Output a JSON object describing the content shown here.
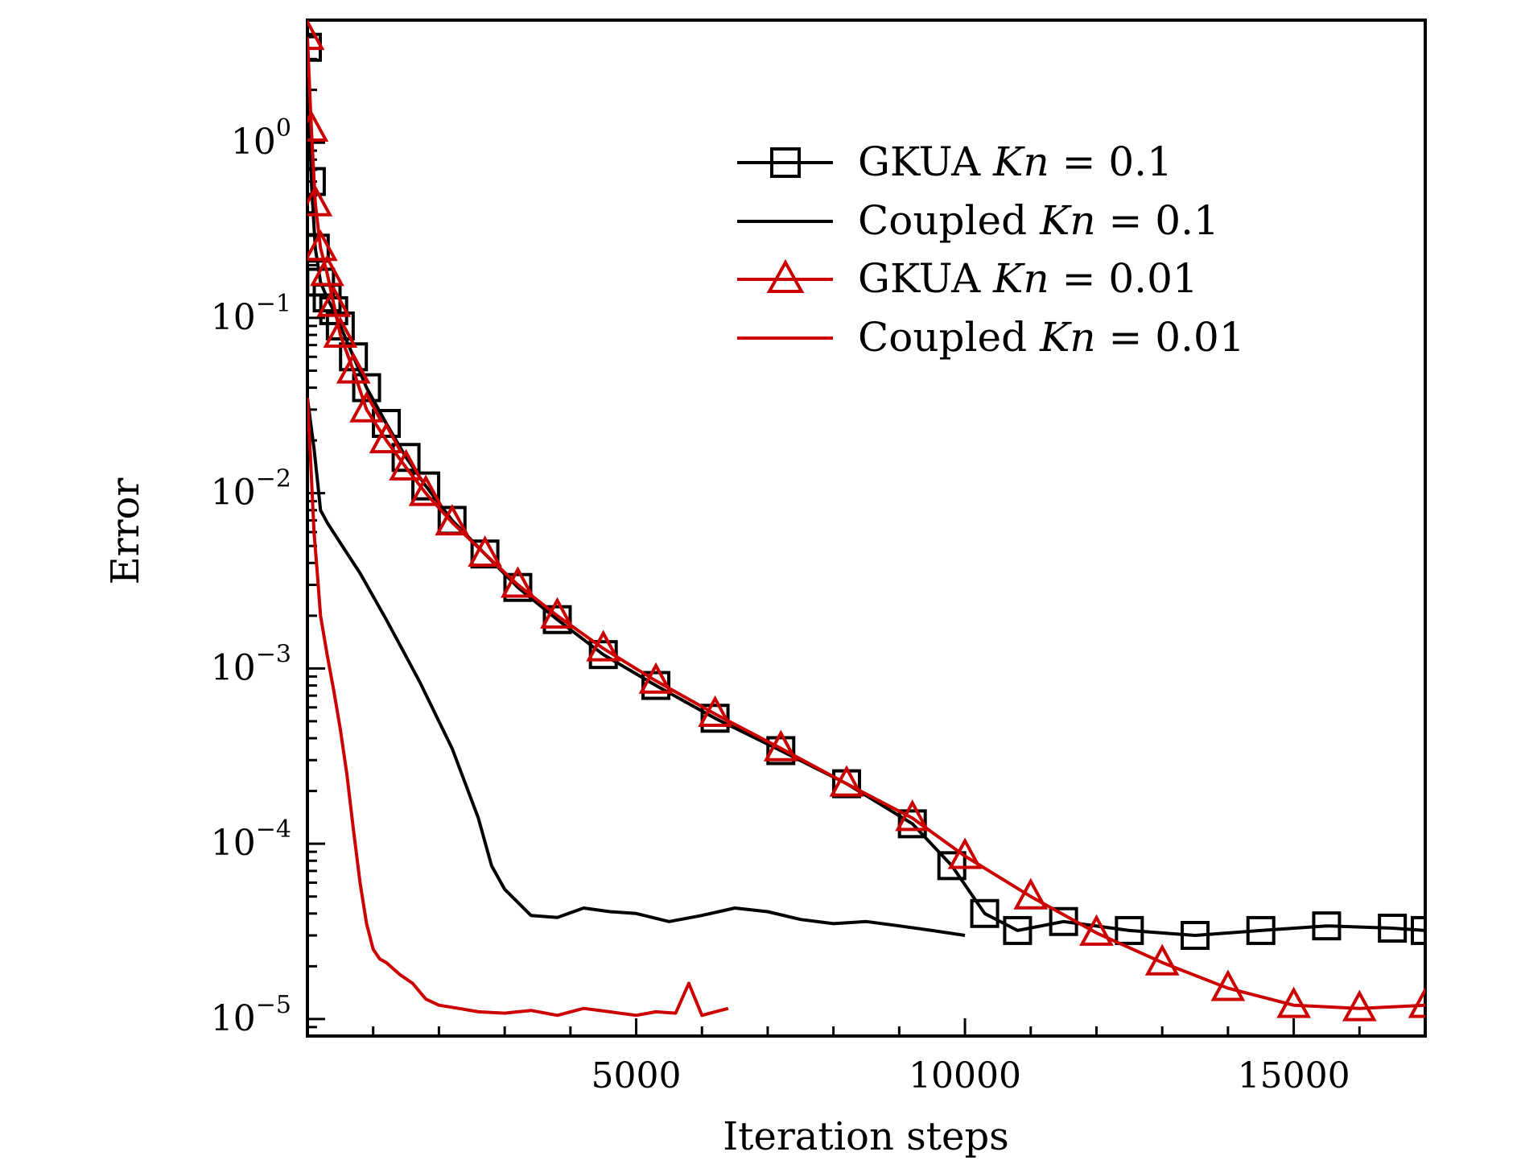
{
  "chart_data": {
    "type": "line",
    "title": "",
    "xlabel": "Iteration steps",
    "ylabel": "Error",
    "xlim": [
      0,
      17000
    ],
    "ylim": [
      8e-06,
      5
    ],
    "yscale": "log",
    "xticks": [
      5000,
      10000,
      15000
    ],
    "xtick_labels": [
      "5000",
      "10000",
      "15000"
    ],
    "yticks": [
      1,
      0.1,
      0.01,
      0.001,
      0.0001,
      1e-05
    ],
    "ytick_labels": [
      {
        "base": "10",
        "exp": "0"
      },
      {
        "base": "10",
        "exp": "−1"
      },
      {
        "base": "10",
        "exp": "−2"
      },
      {
        "base": "10",
        "exp": "−3"
      },
      {
        "base": "10",
        "exp": "−4"
      },
      {
        "base": "10",
        "exp": "−5"
      }
    ],
    "legend_position": "upper-right",
    "series": [
      {
        "name": "GKUA Kn = 0.1",
        "label": {
          "prefix": "GKUA ",
          "math": "Kn",
          "suffix": " = 0.1"
        },
        "color": "#000000",
        "marker": "square",
        "x": [
          0,
          60,
          120,
          200,
          300,
          400,
          500,
          700,
          900,
          1200,
          1500,
          1800,
          2200,
          2700,
          3200,
          3800,
          4500,
          5300,
          6200,
          7200,
          8200,
          9200,
          9800,
          10300,
          10800,
          11500,
          12500,
          13500,
          14500,
          15500,
          16500,
          17000
        ],
        "y": [
          3.5,
          0.6,
          0.25,
          0.16,
          0.13,
          0.11,
          0.09,
          0.06,
          0.04,
          0.025,
          0.016,
          0.011,
          0.007,
          0.0045,
          0.0029,
          0.0019,
          0.0012,
          0.0008,
          0.00052,
          0.00034,
          0.00022,
          0.00013,
          7.5e-05,
          4e-05,
          3.2e-05,
          3.6e-05,
          3.2e-05,
          3e-05,
          3.2e-05,
          3.4e-05,
          3.3e-05,
          3.2e-05
        ]
      },
      {
        "name": "Coupled Kn = 0.1",
        "label": {
          "prefix": "Coupled ",
          "math": "Kn",
          "suffix": " = 0.1"
        },
        "color": "#000000",
        "marker": "none",
        "x": [
          0,
          50,
          100,
          150,
          200,
          300,
          500,
          800,
          1200,
          1700,
          2200,
          2600,
          2800,
          3000,
          3400,
          3800,
          4200,
          4600,
          5000,
          5500,
          6000,
          6500,
          7000,
          7500,
          8000,
          8500,
          9000,
          9500,
          10000
        ],
        "y": [
          0.035,
          0.025,
          0.018,
          0.012,
          0.008,
          0.0068,
          0.0052,
          0.0035,
          0.0019,
          0.00085,
          0.00035,
          0.00014,
          7.5e-05,
          5.5e-05,
          3.9e-05,
          3.8e-05,
          4.3e-05,
          4.1e-05,
          4e-05,
          3.6e-05,
          3.9e-05,
          4.3e-05,
          4.1e-05,
          3.7e-05,
          3.5e-05,
          3.6e-05,
          3.4e-05,
          3.2e-05,
          3e-05
        ]
      },
      {
        "name": "GKUA Kn = 0.01",
        "label": {
          "prefix": "GKUA ",
          "math": "Kn",
          "suffix": " = 0.01"
        },
        "color": "#cc0000",
        "marker": "triangle",
        "x": [
          0,
          60,
          120,
          200,
          300,
          400,
          500,
          700,
          900,
          1200,
          1500,
          1800,
          2200,
          2700,
          3200,
          3800,
          4500,
          5300,
          6200,
          7200,
          8200,
          9200,
          10000,
          11000,
          12000,
          13000,
          14000,
          15000,
          16000,
          17000
        ],
        "y": [
          4.0,
          1.2,
          0.45,
          0.25,
          0.18,
          0.12,
          0.08,
          0.05,
          0.03,
          0.02,
          0.014,
          0.01,
          0.0068,
          0.0045,
          0.003,
          0.002,
          0.0013,
          0.00085,
          0.00055,
          0.00035,
          0.00022,
          0.00014,
          8.5e-05,
          5e-05,
          3.1e-05,
          2.1e-05,
          1.5e-05,
          1.2e-05,
          1.15e-05,
          1.2e-05
        ]
      },
      {
        "name": "Coupled Kn = 0.01",
        "label": {
          "prefix": "Coupled ",
          "math": "Kn",
          "suffix": " = 0.01"
        },
        "color": "#cc0000",
        "marker": "none",
        "x": [
          0,
          50,
          100,
          150,
          200,
          300,
          400,
          500,
          600,
          700,
          800,
          900,
          1000,
          1100,
          1200,
          1400,
          1600,
          1800,
          2000,
          2300,
          2600,
          3000,
          3400,
          3800,
          4200,
          4600,
          5000,
          5300,
          5600,
          5800,
          6000,
          6200,
          6400
        ],
        "y": [
          0.035,
          0.015,
          0.006,
          0.0035,
          0.002,
          0.0012,
          0.00075,
          0.00045,
          0.00025,
          0.00012,
          6e-05,
          3.5e-05,
          2.5e-05,
          2.2e-05,
          2.1e-05,
          1.8e-05,
          1.6e-05,
          1.3e-05,
          1.2e-05,
          1.15e-05,
          1.1e-05,
          1.08e-05,
          1.12e-05,
          1.05e-05,
          1.15e-05,
          1.1e-05,
          1.05e-05,
          1.1e-05,
          1.08e-05,
          1.6e-05,
          1.05e-05,
          1.1e-05,
          1.15e-05
        ]
      }
    ]
  }
}
